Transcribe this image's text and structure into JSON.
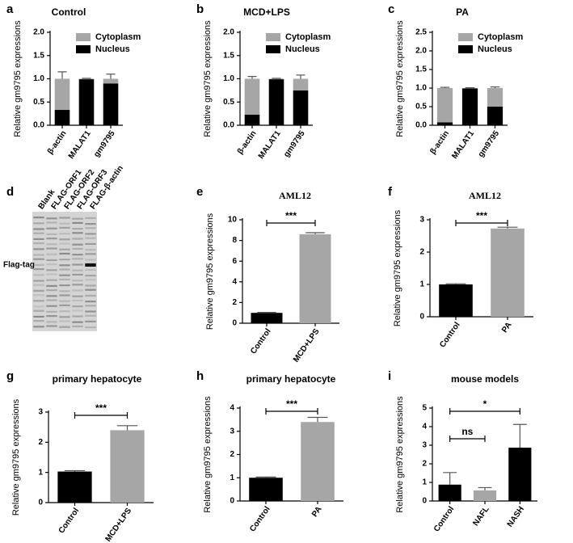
{
  "chart_data": [
    {
      "panel": "a",
      "type": "stacked_bar",
      "title": "Control",
      "ylabel": "Relative gm9795 expressions",
      "categories": [
        "β-actin",
        "MALAT1",
        "gm9795"
      ],
      "series": [
        {
          "name": "Nucleus",
          "color": "#000000",
          "values": [
            0.33,
            0.99,
            0.9
          ],
          "errors": [
            0.14,
            0.01,
            0.08
          ]
        },
        {
          "name": "Cytoplasm",
          "color": "#a6a6a6",
          "values": [
            0.67,
            0.01,
            0.1
          ],
          "errors": [
            0.15,
            0.01,
            0.1
          ]
        }
      ],
      "ylim": [
        0,
        2
      ],
      "yticks": [
        {
          "value": 0,
          "label": "0.0"
        },
        0.5,
        {
          "value": 1,
          "label": "1.0"
        },
        1.5,
        {
          "value": 2,
          "label": "2.0"
        }
      ]
    },
    {
      "panel": "b",
      "type": "stacked_bar",
      "title": "MCD+LPS",
      "ylabel": "Relative gm9795 expressions",
      "categories": [
        "β-actin",
        "MALAT1",
        "gm9795"
      ],
      "series": [
        {
          "name": "Nucleus",
          "color": "#000000",
          "values": [
            0.23,
            0.99,
            0.75
          ],
          "errors": [
            0.05,
            0.01,
            0.1
          ]
        },
        {
          "name": "Cytoplasm",
          "color": "#a6a6a6",
          "values": [
            0.77,
            0.01,
            0.25
          ],
          "errors": [
            0.05,
            0.01,
            0.08
          ]
        }
      ],
      "ylim": [
        0,
        2
      ],
      "yticks": [
        {
          "value": 0,
          "label": "0.0"
        },
        0.5,
        {
          "value": 1,
          "label": "1.0"
        },
        1.5,
        {
          "value": 2,
          "label": "2.0"
        }
      ]
    },
    {
      "panel": "c",
      "type": "stacked_bar",
      "title": "PA",
      "ylabel": "Relative gm9795 expressions",
      "categories": [
        "β-actin",
        "MALAT1",
        "gm9795"
      ],
      "series": [
        {
          "name": "Nucleus",
          "color": "#000000",
          "values": [
            0.08,
            0.99,
            0.5
          ],
          "errors": [
            0.03,
            0.01,
            0.04
          ]
        },
        {
          "name": "Cytoplasm",
          "color": "#a6a6a6",
          "values": [
            0.92,
            0.01,
            0.5
          ],
          "errors": [
            0.02,
            0.01,
            0.03
          ]
        }
      ],
      "ylim": [
        0,
        2.5
      ],
      "yticks": [
        {
          "value": 0,
          "label": "0.0"
        },
        0.5,
        {
          "value": 1,
          "label": "1.0"
        },
        1.5,
        {
          "value": 2,
          "label": "2.0"
        },
        2.5
      ]
    },
    {
      "panel": "d",
      "type": "blot",
      "lanes": [
        "Blank",
        "FLAG-ORF1",
        "FLAG-ORF2",
        "FLAG-ORF3",
        "FLAG-β-actin"
      ],
      "band_label": "Flag-tag"
    },
    {
      "panel": "e",
      "type": "bar",
      "title": "AML12",
      "ylabel": "Relative gm9795 expressions",
      "categories": [
        "Control",
        "MCD+LPS"
      ],
      "values": [
        1.0,
        8.6
      ],
      "errors": [
        0.05,
        0.15
      ],
      "colors": [
        "#000000",
        "#a6a6a6"
      ],
      "ylim": [
        0,
        10
      ],
      "yticks": [
        0,
        2,
        4,
        6,
        8,
        10
      ],
      "significance": [
        {
          "text": "***",
          "between": [
            "Control",
            "MCD+LPS"
          ]
        }
      ]
    },
    {
      "panel": "f",
      "type": "bar",
      "title": "AML12",
      "ylabel": "Relative gm9795 expressions",
      "categories": [
        "Control",
        "PA"
      ],
      "values": [
        1.0,
        2.73
      ],
      "errors": [
        0.02,
        0.04
      ],
      "colors": [
        "#000000",
        "#a6a6a6"
      ],
      "ylim": [
        0,
        3
      ],
      "yticks": [
        0,
        1,
        2,
        3
      ],
      "significance": [
        {
          "text": "***",
          "between": [
            "Control",
            "PA"
          ]
        }
      ]
    },
    {
      "panel": "g",
      "type": "bar",
      "title": "primary hepatocyte",
      "ylabel": "Relative gm9795 expressions",
      "categories": [
        "Control",
        "MCD+LPS"
      ],
      "values": [
        1.03,
        2.4
      ],
      "errors": [
        0.03,
        0.15
      ],
      "colors": [
        "#000000",
        "#a6a6a6"
      ],
      "ylim": [
        0,
        3
      ],
      "yticks": [
        0,
        1,
        2,
        3
      ],
      "significance": [
        {
          "text": "***",
          "between": [
            "Control",
            "MCD+LPS"
          ]
        }
      ]
    },
    {
      "panel": "h",
      "type": "bar",
      "title": "primary hepatocyte",
      "ylabel": "Relative gm9795 expressions",
      "categories": [
        "Control",
        "PA"
      ],
      "values": [
        1.0,
        3.4
      ],
      "errors": [
        0.03,
        0.2
      ],
      "colors": [
        "#000000",
        "#a6a6a6"
      ],
      "ylim": [
        0,
        4
      ],
      "yticks": [
        0,
        1,
        2,
        3,
        4
      ],
      "significance": [
        {
          "text": "***",
          "between": [
            "Control",
            "PA"
          ]
        }
      ]
    },
    {
      "panel": "i",
      "type": "bar",
      "title": "mouse models",
      "ylabel": "Relative gm9795 expressions",
      "categories": [
        "Control",
        "NAFL",
        "NASH"
      ],
      "values": [
        0.88,
        0.57,
        2.87
      ],
      "errors": [
        0.65,
        0.15,
        1.25
      ],
      "colors": [
        "#000000",
        "#a6a6a6",
        "#000000"
      ],
      "ylim": [
        0,
        5
      ],
      "yticks": [
        0,
        1,
        2,
        3,
        4,
        5
      ],
      "significance": [
        {
          "text": "*",
          "between": [
            "Control",
            "NASH"
          ]
        },
        {
          "text": "ns",
          "between": [
            "Control",
            "NAFL"
          ]
        }
      ]
    }
  ]
}
